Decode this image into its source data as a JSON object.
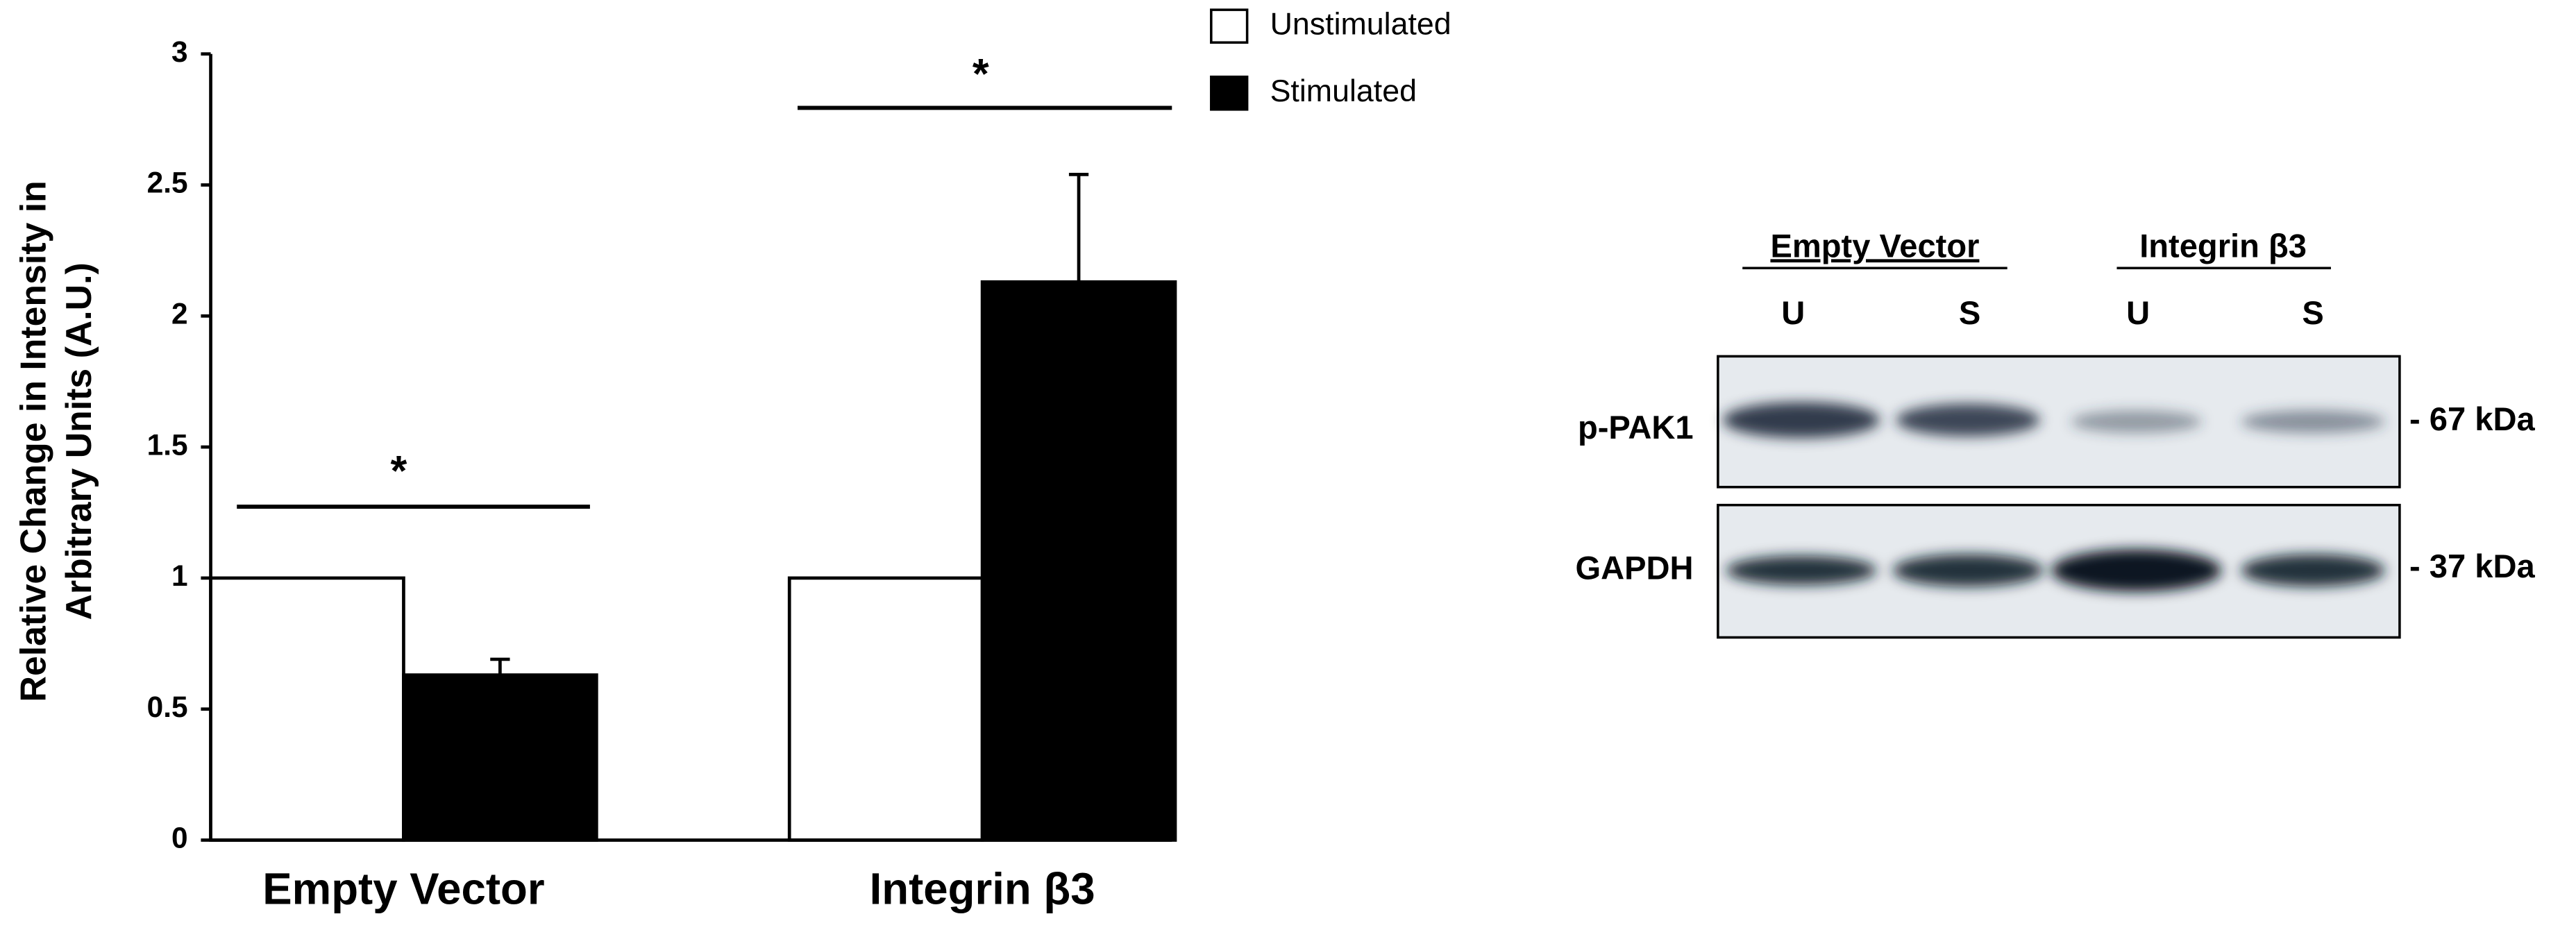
{
  "chart_data": {
    "type": "bar",
    "ylabel": [
      "Relative Change in Intensity in",
      "Arbitrary Units (A.U.)"
    ],
    "categories": [
      "Empty Vector",
      "Integrin β3"
    ],
    "series": [
      {
        "name": "Unstimulated",
        "color": "#ffffff",
        "values": [
          1,
          1
        ]
      },
      {
        "name": "Stimulated",
        "color": "#000000",
        "values": [
          0.63,
          2.13
        ],
        "errors": [
          0.06,
          0.41
        ]
      }
    ],
    "annotations": [
      "*",
      "*"
    ],
    "ylim": [
      0,
      3
    ],
    "yticks": [
      0,
      0.5,
      1,
      1.5,
      2,
      2.5,
      3
    ],
    "grid": false,
    "legend": "top-right"
  },
  "blot": {
    "groups": [
      "Empty Vector",
      "Integrin β3"
    ],
    "lanes": [
      "U",
      "S",
      "U",
      "S"
    ],
    "rows": [
      {
        "label": "p-PAK1",
        "size": "- 67 kDa"
      },
      {
        "label": "GAPDH",
        "size": "- 37 kDa"
      }
    ]
  }
}
